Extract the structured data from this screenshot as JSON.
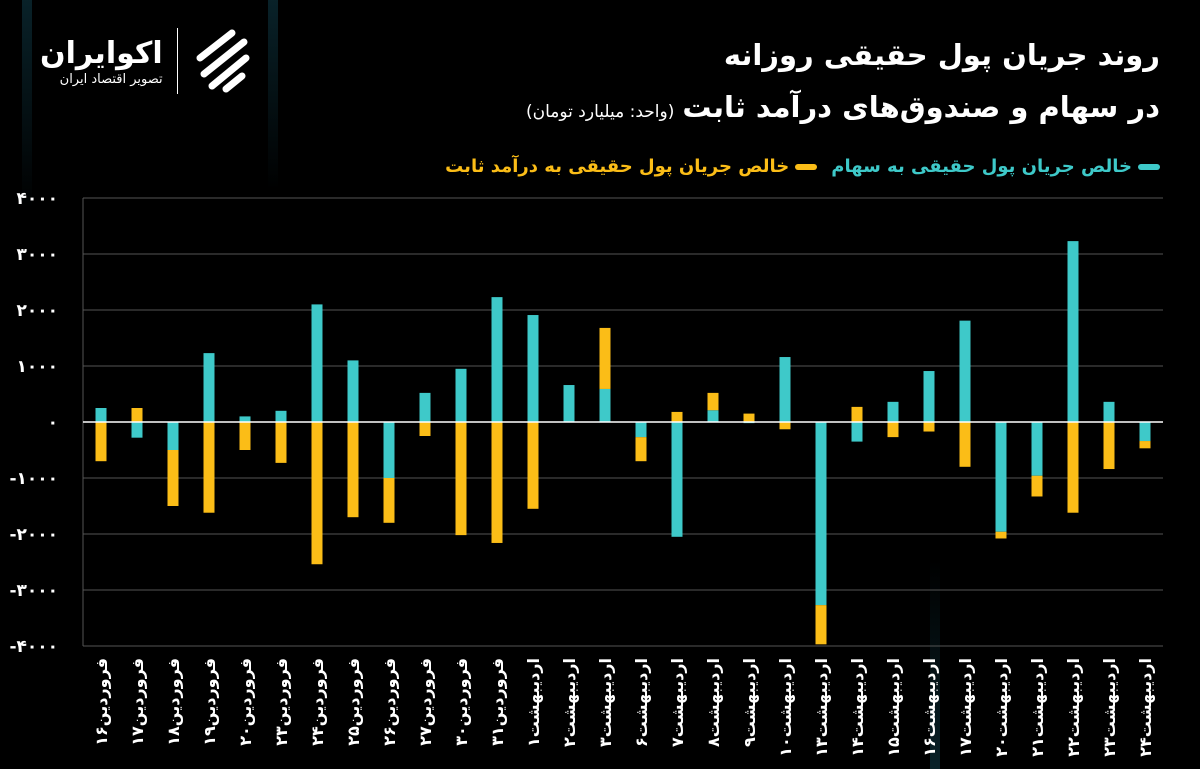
{
  "header": {
    "title_line1": "روند جریان پول حقیقی روزانه",
    "title_line2": "در سهام و صندوق‌های درآمد ثابت",
    "unit": "(واحد: میلیارد تومان)"
  },
  "brand": {
    "name": "اکوایران",
    "tagline": "تصویر اقتصاد ایران",
    "icon": "striped-shield-logo"
  },
  "colors": {
    "stocks": "#3ec9c9",
    "fixed_income": "#fbbd17",
    "background": "#000000",
    "grid": "#555555",
    "zero_line": "#ffffff"
  },
  "chart_data": {
    "type": "bar",
    "stacked": true,
    "title": "روند جریان پول حقیقی روزانه در سهام و صندوق‌های درآمد ثابت",
    "ylabel": "",
    "xlabel": "",
    "ylim": [
      -4000,
      4000
    ],
    "yticks": [
      4000,
      3000,
      2000,
      1000,
      0,
      -1000,
      -2000,
      -3000,
      -4000
    ],
    "ytick_labels": [
      "۴۰۰۰",
      "۳۰۰۰",
      "۲۰۰۰",
      "۱۰۰۰",
      "۰",
      "-۱۰۰۰",
      "-۲۰۰۰",
      "-۳۰۰۰",
      "-۴۰۰۰"
    ],
    "grid": true,
    "legend_position": "top-right",
    "categories": [
      "فروردین۱۶",
      "فروردین۱۷",
      "فروردین۱۸",
      "فروردین۱۹",
      "فروردین۲۰",
      "فروردین۲۳",
      "فروردین۲۴",
      "فروردین۲۵",
      "فروردین۲۶",
      "فروردین۲۷",
      "فروردین۳۰",
      "فروردین۳۱",
      "اردیبهشت۱",
      "اردیبهشت۲",
      "اردیبهشت۳",
      "اردیبهشت۶",
      "اردیبهشت۷",
      "اردیبهشت۸",
      "اردیبهشت۹",
      "اردیبهشت۱۰",
      "اردیبهشت۱۳",
      "اردیبهشت۱۴",
      "اردیبهشت۱۵",
      "اردیبهشت۱۶",
      "اردیبهشت۱۷",
      "اردیبهشت۲۰",
      "اردیبهشت۲۱",
      "اردیبهشت۲۲",
      "اردیبهشت۲۳",
      "اردیبهشت۲۴"
    ],
    "series": [
      {
        "name": "خالص جریان پول حقیقی به سهام",
        "color": "#3ec9c9",
        "values": [
          250,
          -280,
          -500,
          1230,
          100,
          200,
          2100,
          1100,
          -1000,
          520,
          950,
          2230,
          1910,
          660,
          590,
          -270,
          -2050,
          210,
          -20,
          1160,
          -3270,
          -350,
          360,
          910,
          1810,
          -1960,
          -960,
          3230,
          360,
          -340
        ]
      },
      {
        "name": "خالص جریان پول حقیقی به درآمد ثابت",
        "color": "#fbbd17",
        "values": [
          -700,
          250,
          -1000,
          -1620,
          -500,
          -730,
          -2540,
          -1700,
          -800,
          -250,
          -2020,
          -2160,
          -1550,
          0,
          1090,
          -430,
          180,
          310,
          150,
          -130,
          -700,
          270,
          -270,
          -170,
          -800,
          -120,
          -370,
          -1620,
          -840,
          -130
        ]
      }
    ]
  }
}
